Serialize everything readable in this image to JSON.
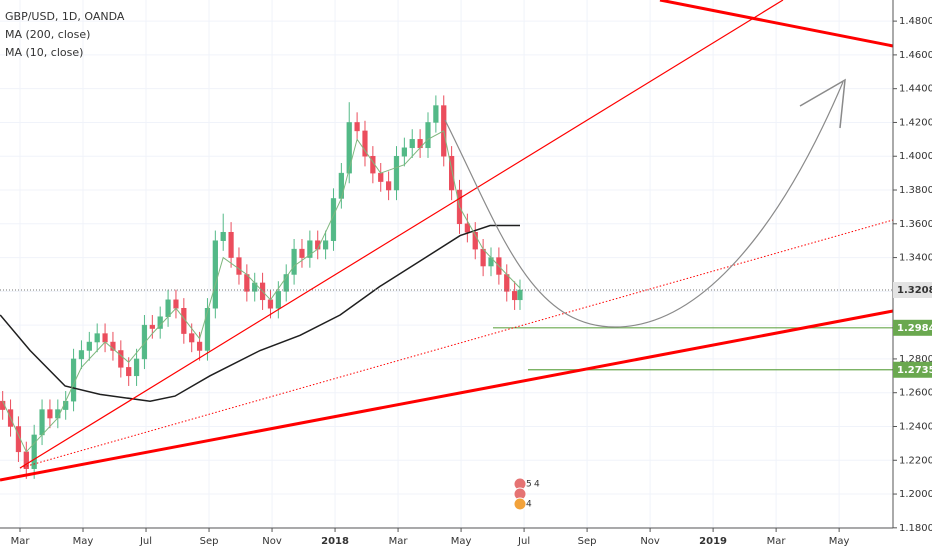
{
  "chart_data": {
    "type": "candlestick",
    "title": "GBP/USD, 1D, OANDA",
    "up_color": "#53b987",
    "down_color": "#eb4d5c",
    "x": [
      1.45,
      1.7,
      1.95,
      2.2,
      2.45,
      2.7,
      2.95,
      3.2,
      3.45,
      3.7,
      3.95,
      4.2,
      4.45,
      4.7,
      4.95,
      5.2,
      5.45,
      5.7,
      5.95,
      6.2,
      6.45,
      6.7,
      6.95,
      7.2,
      7.45,
      7.7,
      7.95,
      8.2,
      8.45,
      8.7,
      8.95,
      9.2,
      9.45,
      9.7,
      9.95,
      10.2,
      10.45,
      10.7,
      10.95,
      11.2,
      11.45,
      11.7,
      11.95,
      12.2,
      12.45,
      12.7,
      12.95,
      13.2,
      13.45,
      13.7,
      13.95,
      14.2,
      14.45,
      14.7,
      14.95,
      15.2,
      15.45,
      15.7,
      15.95,
      16.2,
      16.45,
      16.7,
      16.95,
      17.2,
      17.45,
      17.7,
      17.87
    ],
    "opens": [
      1.255,
      1.25,
      1.24,
      1.225,
      1.215,
      1.235,
      1.25,
      1.245,
      1.25,
      1.255,
      1.28,
      1.285,
      1.29,
      1.295,
      1.29,
      1.285,
      1.275,
      1.27,
      1.28,
      1.3,
      1.298,
      1.305,
      1.315,
      1.31,
      1.295,
      1.29,
      1.285,
      1.31,
      1.35,
      1.355,
      1.34,
      1.33,
      1.32,
      1.325,
      1.315,
      1.31,
      1.32,
      1.33,
      1.345,
      1.34,
      1.35,
      1.345,
      1.35,
      1.375,
      1.39,
      1.42,
      1.415,
      1.4,
      1.39,
      1.385,
      1.38,
      1.4,
      1.405,
      1.41,
      1.405,
      1.42,
      1.43,
      1.4,
      1.38,
      1.36,
      1.355,
      1.345,
      1.335,
      1.34,
      1.33,
      1.32,
      1.315
    ],
    "highs": [
      1.261,
      1.256,
      1.246,
      1.231,
      1.241,
      1.256,
      1.256,
      1.256,
      1.261,
      1.286,
      1.291,
      1.296,
      1.301,
      1.301,
      1.296,
      1.291,
      1.281,
      1.286,
      1.306,
      1.306,
      1.311,
      1.321,
      1.321,
      1.316,
      1.301,
      1.296,
      1.316,
      1.356,
      1.366,
      1.361,
      1.346,
      1.336,
      1.331,
      1.331,
      1.321,
      1.326,
      1.336,
      1.351,
      1.351,
      1.356,
      1.356,
      1.356,
      1.381,
      1.396,
      1.432,
      1.426,
      1.421,
      1.406,
      1.396,
      1.391,
      1.406,
      1.411,
      1.416,
      1.416,
      1.426,
      1.436,
      1.436,
      1.406,
      1.386,
      1.366,
      1.361,
      1.351,
      1.346,
      1.346,
      1.336,
      1.326,
      1.327
    ],
    "lows": [
      1.244,
      1.234,
      1.219,
      1.209,
      1.209,
      1.229,
      1.239,
      1.239,
      1.244,
      1.249,
      1.274,
      1.279,
      1.284,
      1.284,
      1.279,
      1.269,
      1.264,
      1.264,
      1.274,
      1.292,
      1.292,
      1.299,
      1.304,
      1.289,
      1.284,
      1.279,
      1.279,
      1.304,
      1.344,
      1.334,
      1.324,
      1.314,
      1.314,
      1.309,
      1.304,
      1.304,
      1.314,
      1.324,
      1.334,
      1.334,
      1.339,
      1.339,
      1.344,
      1.369,
      1.384,
      1.409,
      1.394,
      1.384,
      1.379,
      1.374,
      1.374,
      1.394,
      1.399,
      1.399,
      1.399,
      1.414,
      1.394,
      1.374,
      1.354,
      1.349,
      1.339,
      1.329,
      1.329,
      1.324,
      1.314,
      1.309,
      1.309
    ],
    "closes": [
      1.25,
      1.24,
      1.225,
      1.215,
      1.235,
      1.25,
      1.245,
      1.25,
      1.255,
      1.28,
      1.285,
      1.29,
      1.295,
      1.29,
      1.285,
      1.275,
      1.27,
      1.28,
      1.3,
      1.298,
      1.305,
      1.315,
      1.31,
      1.295,
      1.29,
      1.285,
      1.31,
      1.35,
      1.355,
      1.34,
      1.33,
      1.32,
      1.325,
      1.315,
      1.31,
      1.32,
      1.33,
      1.345,
      1.34,
      1.35,
      1.345,
      1.35,
      1.375,
      1.39,
      1.42,
      1.415,
      1.4,
      1.39,
      1.385,
      1.38,
      1.4,
      1.405,
      1.41,
      1.405,
      1.42,
      1.43,
      1.4,
      1.38,
      1.36,
      1.355,
      1.345,
      1.335,
      1.34,
      1.33,
      1.32,
      1.315,
      1.32081
    ],
    "series": [
      {
        "name": "MA (200, close)",
        "color": "#1f1f1f",
        "x": [
          1.37,
          2.32,
          3.43,
          4.54,
          6.13,
          6.92,
          8.03,
          9.62,
          10.89,
          12.16,
          13.43,
          14.7,
          15.97,
          16.92,
          17.87
        ],
        "values": [
          1.306,
          1.285,
          1.264,
          1.259,
          1.255,
          1.258,
          1.27,
          1.285,
          1.294,
          1.306,
          1.323,
          1.338,
          1.353,
          1.359,
          1.359
        ]
      },
      {
        "name": "MA (10, close)",
        "color": "#7fb77e",
        "x": [
          1.45,
          2.2,
          3.2,
          3.95,
          4.7,
          5.45,
          6.2,
          6.95,
          7.7,
          8.45,
          9.2,
          9.95,
          10.7,
          11.45,
          12.2,
          12.7,
          13.45,
          14.2,
          14.95,
          15.45,
          15.95,
          16.7,
          17.45,
          17.87
        ],
        "values": [
          1.255,
          1.225,
          1.245,
          1.275,
          1.29,
          1.278,
          1.295,
          1.31,
          1.292,
          1.34,
          1.33,
          1.315,
          1.335,
          1.345,
          1.375,
          1.41,
          1.39,
          1.395,
          1.41,
          1.415,
          1.37,
          1.345,
          1.33,
          1.322
        ]
      }
    ],
    "last_price": 1.32081,
    "price_levels": [
      {
        "value": 1.29843,
        "color": "#6aa84f"
      },
      {
        "value": 1.27359,
        "color": "#6aa84f"
      }
    ],
    "events": [
      "5",
      "4",
      "4"
    ],
    "xlim": [
      1.365,
      29.71
    ],
    "xticks": [
      {
        "value": 2,
        "label": "Mar"
      },
      {
        "value": 4,
        "label": "May"
      },
      {
        "value": 6,
        "label": "Jul"
      },
      {
        "value": 8,
        "label": "Sep"
      },
      {
        "value": 10,
        "label": "Nov"
      },
      {
        "value": 12,
        "label": "2018"
      },
      {
        "value": 14,
        "label": "Mar"
      },
      {
        "value": 16,
        "label": "May"
      },
      {
        "value": 18,
        "label": "Jul"
      },
      {
        "value": 20,
        "label": "Sep"
      },
      {
        "value": 22,
        "label": "Nov"
      },
      {
        "value": 24,
        "label": "2019"
      },
      {
        "value": 26,
        "label": "Mar"
      },
      {
        "value": 28,
        "label": "May"
      }
    ],
    "ylim": [
      1.1799,
      1.4925
    ],
    "yticks": [
      {
        "value": 1.18,
        "label": "1.18000"
      },
      {
        "value": 1.2,
        "label": "1.20000"
      },
      {
        "value": 1.22,
        "label": "1.22000"
      },
      {
        "value": 1.24,
        "label": "1.24000"
      },
      {
        "value": 1.26,
        "label": "1.26000"
      },
      {
        "value": 1.28,
        "label": "1.28000"
      },
      {
        "value": 1.3,
        "label": "1.30000"
      },
      {
        "value": 1.32,
        "label": "1.32000"
      },
      {
        "value": 1.34,
        "label": "1.34000"
      },
      {
        "value": 1.36,
        "label": "1.36000"
      },
      {
        "value": 1.38,
        "label": "1.38000"
      },
      {
        "value": 1.4,
        "label": "1.40000"
      },
      {
        "value": 1.42,
        "label": "1.42000"
      },
      {
        "value": 1.44,
        "label": "1.44000"
      },
      {
        "value": 1.46,
        "label": "1.46000"
      },
      {
        "value": 1.48,
        "label": "1.48000"
      }
    ],
    "grid": true
  }
}
